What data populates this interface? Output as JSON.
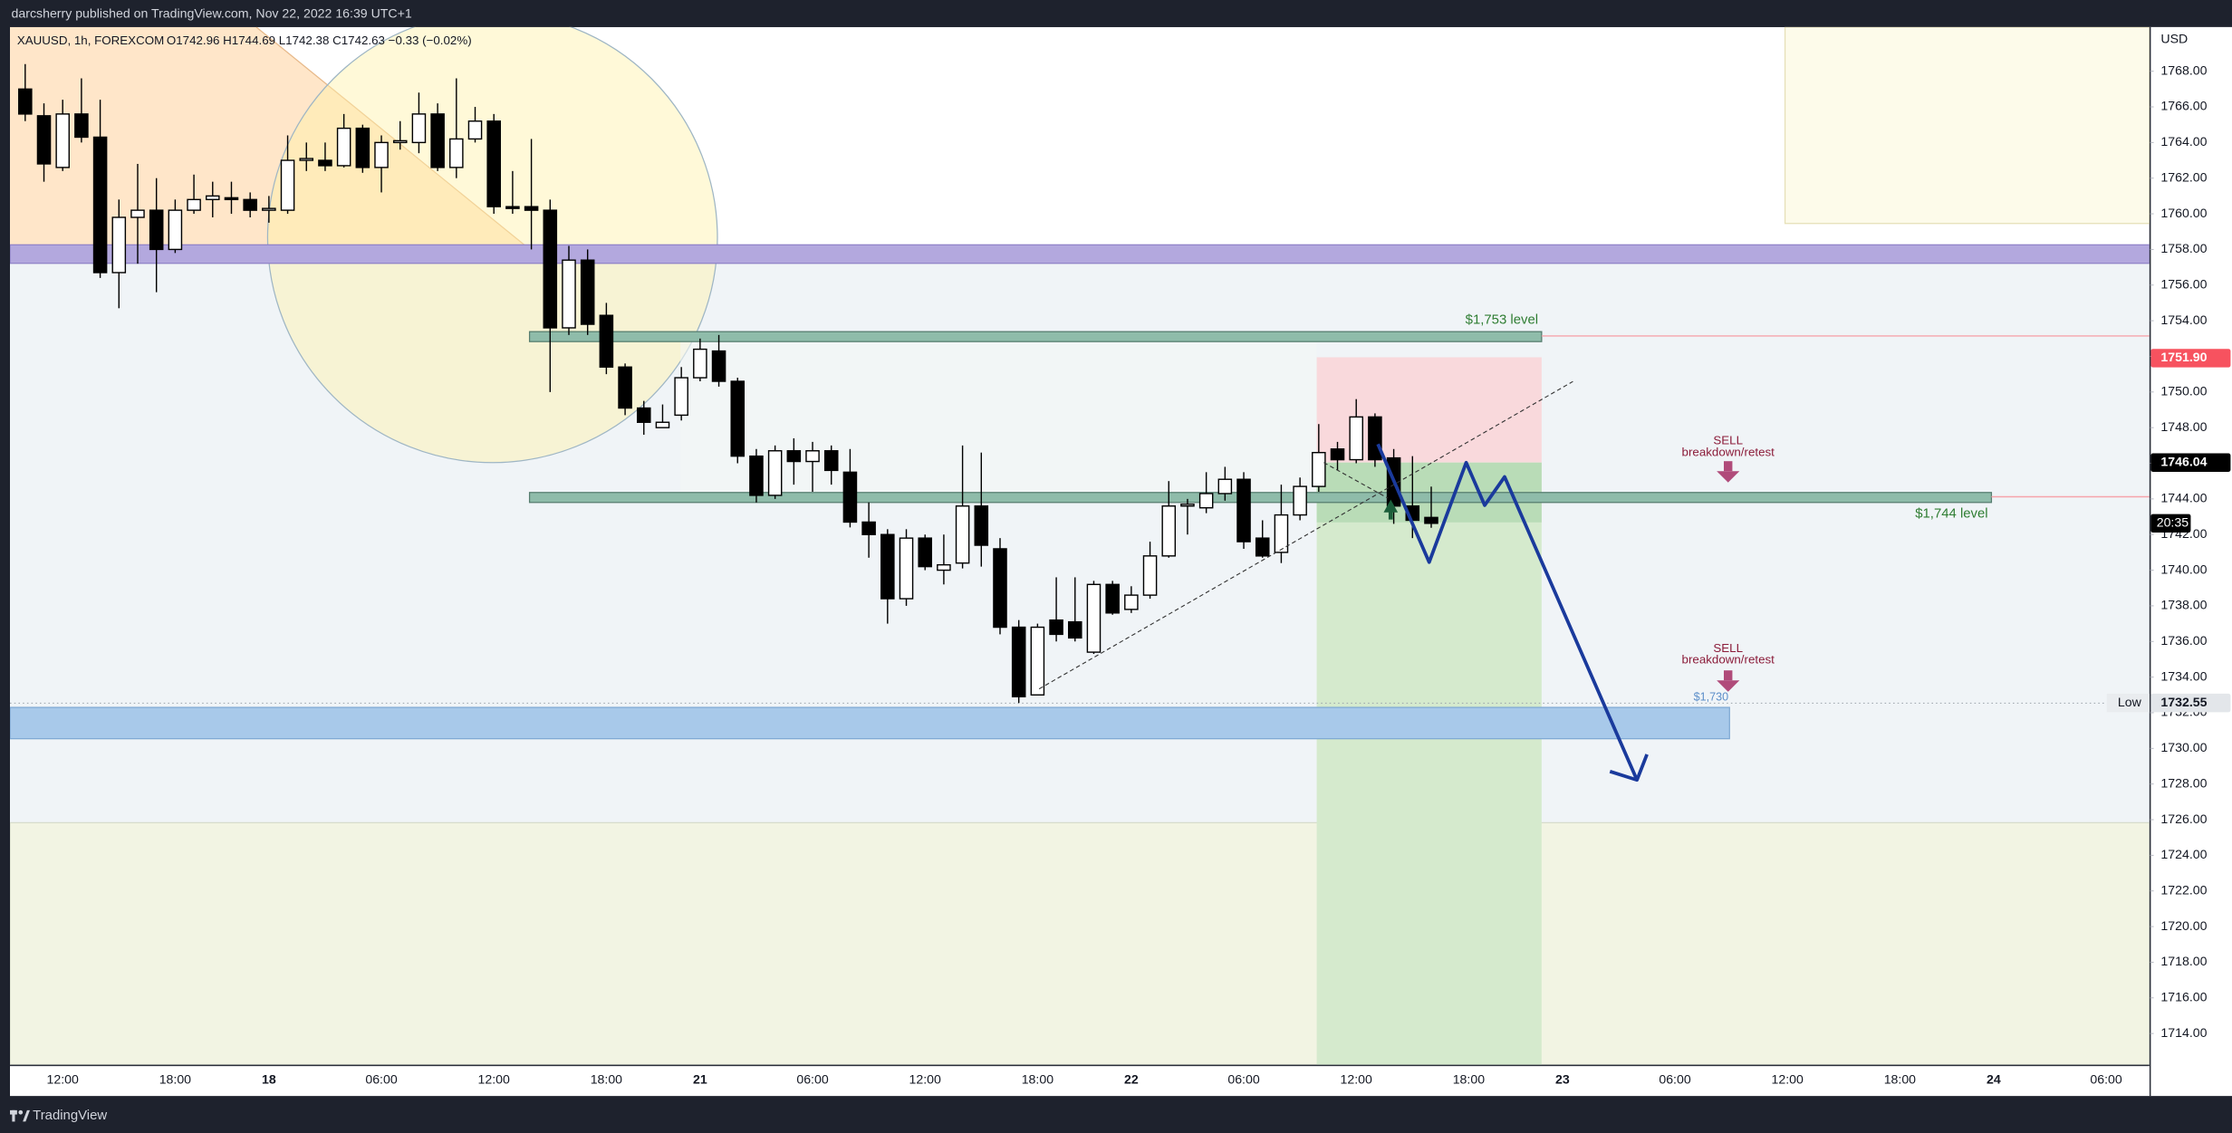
{
  "header": {
    "title": "darcsherry published on TradingView.com, Nov 22, 2022 16:39 UTC+1"
  },
  "chart_data": {
    "type": "candlestick",
    "symbol": "XAUUSD, 1h, FOREXCOM",
    "ohlc_text": "O1742.96 H1744.69 L1742.38 C1742.63 −0.33 (−0.02%)",
    "currency": "USD",
    "categories": [
      null,
      null,
      "12:00",
      null,
      null,
      null,
      null,
      null,
      "18:00",
      null,
      null,
      null,
      null,
      "18",
      null,
      null,
      null,
      null,
      null,
      "06:00",
      null,
      null,
      null,
      null,
      null,
      "12:00",
      null,
      null,
      null,
      null,
      null,
      "18:00",
      null,
      null,
      null,
      null,
      "21",
      null,
      null,
      null,
      null,
      null,
      "06:00",
      null,
      null,
      null,
      null,
      null,
      "12:00",
      null,
      null,
      null,
      null,
      null,
      "18:00",
      null,
      null,
      null,
      null,
      "22",
      null,
      null,
      null,
      null,
      null,
      "06:00",
      null,
      null,
      null,
      null,
      null,
      "12:00",
      null,
      null,
      null,
      null,
      null,
      "18:00",
      null,
      null,
      null,
      null,
      "23",
      null,
      null,
      null,
      null,
      null,
      "06:00",
      null,
      null,
      null,
      null,
      null,
      "12:00",
      null,
      null,
      null,
      null,
      null,
      "18:00",
      null,
      null,
      null,
      null,
      "24",
      null,
      null,
      null,
      null,
      null,
      "06:00",
      null,
      null
    ],
    "open": [
      1767.0,
      1765.5,
      1762.6,
      1765.6,
      1764.3,
      1756.7,
      1759.8,
      1760.2,
      1758.0,
      1760.2,
      1760.8,
      1760.9,
      1760.8,
      1760.2,
      1760.2,
      1763.0,
      1763.0,
      1762.7,
      1764.8,
      1762.6,
      1764.0,
      1764.0,
      1765.6,
      1762.6,
      1764.2,
      1765.2,
      1760.4,
      1760.4,
      1760.2,
      1753.6,
      1757.4,
      1754.3,
      1751.4,
      1749.1,
      1748.0,
      1748.7,
      1750.8,
      1752.3,
      1750.6,
      1746.4,
      1744.2,
      1746.7,
      1746.1,
      1746.7,
      1745.5,
      1742.7,
      1742.0,
      1738.4,
      1741.8,
      1740.0,
      1740.4,
      1743.6,
      1741.2,
      1736.8,
      1733.0,
      1737.2,
      1737.1,
      1735.4,
      1739.2,
      1737.8,
      1738.6,
      1740.8,
      1743.6,
      1743.5,
      1744.3,
      1745.1,
      1741.8,
      1741.0,
      1743.1,
      1744.7,
      1746.8,
      1746.2,
      1748.6,
      1746.3,
      1743.6,
      1742.96,
      null,
      null,
      null,
      null,
      null,
      null,
      null,
      null,
      null,
      null,
      null,
      null,
      null,
      null,
      null,
      null,
      null,
      null,
      null,
      null,
      null,
      null,
      null,
      null,
      null,
      null,
      null,
      null,
      null,
      null,
      null,
      null,
      null,
      null,
      null,
      null,
      null,
      null
    ],
    "high": [
      1768.4,
      1766.2,
      1766.4,
      1767.6,
      1766.4,
      1760.8,
      1762.8,
      1762.0,
      1760.8,
      1762.2,
      1761.8,
      1761.8,
      1761.2,
      1761.0,
      1764.4,
      1764.0,
      1764.0,
      1765.6,
      1765.0,
      1764.4,
      1765.2,
      1766.8,
      1766.2,
      1767.6,
      1766.0,
      1765.6,
      1762.4,
      1764.2,
      1760.8,
      1758.2,
      1758.0,
      1755.0,
      1751.6,
      1749.5,
      1749.3,
      1751.4,
      1753.0,
      1753.2,
      1750.8,
      1746.8,
      1747.0,
      1747.4,
      1747.2,
      1747.0,
      1746.8,
      1743.8,
      1742.3,
      1742.3,
      1742.0,
      1742.0,
      1747.0,
      1746.6,
      1741.8,
      1737.2,
      1737.0,
      1739.6,
      1739.6,
      1739.4,
      1739.4,
      1739.1,
      1741.6,
      1745.0,
      1744.0,
      1745.5,
      1745.8,
      1745.5,
      1742.8,
      1744.8,
      1745.2,
      1748.2,
      1747.2,
      1749.6,
      1748.8,
      1746.8,
      1746.4,
      1744.69,
      null,
      null,
      null,
      null,
      null,
      null,
      null,
      null,
      null,
      null,
      null,
      null,
      null,
      null,
      null,
      null,
      null,
      null,
      null,
      null,
      null,
      null,
      null,
      null,
      null,
      null,
      null,
      null,
      null,
      null,
      null,
      null,
      null,
      null,
      null,
      null,
      null,
      null
    ],
    "low": [
      1765.2,
      1761.8,
      1762.4,
      1764.0,
      1756.4,
      1754.7,
      1757.2,
      1755.6,
      1757.8,
      1760.0,
      1759.8,
      1760.0,
      1759.8,
      1759.5,
      1760.0,
      1762.4,
      1762.4,
      1762.6,
      1762.3,
      1761.2,
      1763.6,
      1763.4,
      1762.4,
      1762.0,
      1764.0,
      1760.0,
      1760.0,
      1758.0,
      1750.0,
      1753.2,
      1753.2,
      1751.0,
      1748.7,
      1747.6,
      1748.0,
      1748.4,
      1750.6,
      1750.3,
      1746.0,
      1743.8,
      1744.0,
      1744.8,
      1744.4,
      1744.8,
      1742.4,
      1740.7,
      1737.0,
      1738.0,
      1740.0,
      1739.2,
      1740.1,
      1740.2,
      1736.4,
      1732.55,
      1733.0,
      1736.0,
      1736.0,
      1735.3,
      1737.5,
      1737.6,
      1738.4,
      1740.7,
      1742.0,
      1743.2,
      1743.9,
      1741.2,
      1740.7,
      1740.4,
      1742.8,
      1744.4,
      1745.6,
      1746.0,
      1745.8,
      1742.6,
      1741.8,
      1742.38,
      null,
      null,
      null,
      null,
      null,
      null,
      null,
      null,
      null,
      null,
      null,
      null,
      null,
      null,
      null,
      null,
      null,
      null,
      null,
      null,
      null,
      null,
      null,
      null,
      null,
      null,
      null,
      null,
      null,
      null,
      null,
      null,
      null,
      null,
      null,
      null,
      null,
      null
    ],
    "close": [
      1765.6,
      1762.8,
      1765.6,
      1764.3,
      1756.7,
      1759.8,
      1760.2,
      1758.0,
      1760.2,
      1760.8,
      1761.0,
      1760.8,
      1760.2,
      1760.3,
      1763.0,
      1763.1,
      1762.7,
      1764.8,
      1762.6,
      1764.0,
      1764.1,
      1765.6,
      1762.6,
      1764.2,
      1765.2,
      1760.4,
      1760.3,
      1760.2,
      1753.6,
      1757.4,
      1753.8,
      1751.4,
      1749.1,
      1748.3,
      1748.3,
      1750.8,
      1752.4,
      1750.6,
      1746.4,
      1744.2,
      1746.7,
      1746.1,
      1746.7,
      1745.6,
      1742.7,
      1742.0,
      1738.4,
      1741.8,
      1740.2,
      1740.3,
      1743.6,
      1741.4,
      1736.8,
      1732.9,
      1736.8,
      1736.4,
      1736.2,
      1739.2,
      1737.6,
      1738.6,
      1740.8,
      1743.6,
      1743.7,
      1744.3,
      1745.1,
      1741.6,
      1740.8,
      1743.1,
      1744.7,
      1746.6,
      1746.2,
      1748.6,
      1746.2,
      1743.6,
      1742.8,
      1742.63,
      null,
      null,
      null,
      null,
      null,
      null,
      null,
      null,
      null,
      null,
      null,
      null,
      null,
      null,
      null,
      null,
      null,
      null,
      null,
      null,
      null,
      null,
      null,
      null,
      null,
      null,
      null,
      null,
      null,
      null,
      null,
      null,
      null,
      null,
      null,
      null,
      null,
      null
    ],
    "up_color": "#ffffff",
    "down_color": "#000000",
    "ylim": [
      1712.25,
      1770.48
    ],
    "yticks": [
      {
        "value": 1714,
        "label": "1714.00"
      },
      {
        "value": 1716,
        "label": "1716.00"
      },
      {
        "value": 1718,
        "label": "1718.00"
      },
      {
        "value": 1720,
        "label": "1720.00"
      },
      {
        "value": 1722,
        "label": "1722.00"
      },
      {
        "value": 1724,
        "label": "1724.00"
      },
      {
        "value": 1726,
        "label": "1726.00"
      },
      {
        "value": 1728,
        "label": "1728.00"
      },
      {
        "value": 1730,
        "label": "1730.00"
      },
      {
        "value": 1732,
        "label": "1732.00"
      },
      {
        "value": 1734,
        "label": "1734.00"
      },
      {
        "value": 1736,
        "label": "1736.00"
      },
      {
        "value": 1738,
        "label": "1738.00"
      },
      {
        "value": 1740,
        "label": "1740.00"
      },
      {
        "value": 1742,
        "label": "1742.00"
      },
      {
        "value": 1744,
        "label": "1744.00"
      },
      {
        "value": 1746,
        "label": "1746.00"
      },
      {
        "value": 1748,
        "label": "1748.00"
      },
      {
        "value": 1750,
        "label": "1750.00"
      },
      {
        "value": 1752,
        "label": "1752.00"
      },
      {
        "value": 1754,
        "label": "1754.00"
      },
      {
        "value": 1756,
        "label": "1756.00"
      },
      {
        "value": 1758,
        "label": "1758.00"
      },
      {
        "value": 1760,
        "label": "1760.00"
      },
      {
        "value": 1762,
        "label": "1762.00"
      },
      {
        "value": 1764,
        "label": "1764.00"
      },
      {
        "value": 1766,
        "label": "1766.00"
      },
      {
        "value": 1768,
        "label": "1768.00"
      }
    ],
    "price_labels": [
      {
        "value": 1751.9,
        "label": "1751.90",
        "color": "#f7525f",
        "text_color": "#ffffff"
      },
      {
        "value": 1746.04,
        "label": "1746.04",
        "color": "#000000",
        "text_color": "#ffffff"
      },
      {
        "value": 1732.55,
        "label": "1732.55",
        "color": "#e3e6ea",
        "text_color": "#131722"
      }
    ],
    "countdown": "20:35",
    "low_label": "Low"
  },
  "annotations": {
    "level_1753": "$1,753 level",
    "level_1744": "$1,744 level",
    "level_1730": "$1,730",
    "sell_1_title": "SELL",
    "sell_1_text": "breakdown/retest",
    "sell_2_title": "SELL",
    "sell_2_text": "breakdown/retest"
  },
  "footer": {
    "brand": "TradingView"
  }
}
